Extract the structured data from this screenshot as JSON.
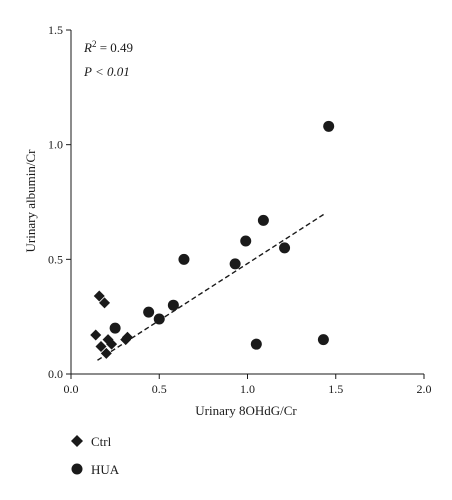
{
  "chart_data": {
    "type": "scatter",
    "xlabel": "Urinary 8OHdG/Cr",
    "ylabel": "Urinary albumin/Cr",
    "xlim": [
      0.0,
      2.0
    ],
    "ylim": [
      0.0,
      1.5
    ],
    "x_ticks": [
      "0.0",
      "0.5",
      "1.0",
      "1.5",
      "2.0"
    ],
    "y_ticks": [
      "0.0",
      "0.5",
      "1.0",
      "1.5"
    ],
    "annotation": {
      "r2_symbol": "R",
      "r2_power": "2",
      "r2_value": " = 0.49",
      "p_text": "P < 0.01"
    },
    "series": [
      {
        "name": "Ctrl",
        "marker": "diamond",
        "points": [
          {
            "x": 0.14,
            "y": 0.17
          },
          {
            "x": 0.16,
            "y": 0.34
          },
          {
            "x": 0.17,
            "y": 0.12
          },
          {
            "x": 0.19,
            "y": 0.31
          },
          {
            "x": 0.2,
            "y": 0.09
          },
          {
            "x": 0.21,
            "y": 0.15
          },
          {
            "x": 0.23,
            "y": 0.13
          },
          {
            "x": 0.31,
            "y": 0.15
          },
          {
            "x": 0.32,
            "y": 0.16
          }
        ]
      },
      {
        "name": "HUA",
        "marker": "circle",
        "points": [
          {
            "x": 0.25,
            "y": 0.2
          },
          {
            "x": 0.44,
            "y": 0.27
          },
          {
            "x": 0.5,
            "y": 0.24
          },
          {
            "x": 0.58,
            "y": 0.3
          },
          {
            "x": 0.64,
            "y": 0.5
          },
          {
            "x": 0.93,
            "y": 0.48
          },
          {
            "x": 0.99,
            "y": 0.58
          },
          {
            "x": 1.05,
            "y": 0.13
          },
          {
            "x": 1.09,
            "y": 0.67
          },
          {
            "x": 1.21,
            "y": 0.55
          },
          {
            "x": 1.43,
            "y": 0.15
          },
          {
            "x": 1.46,
            "y": 1.08
          }
        ]
      }
    ],
    "fit_line": {
      "x": [
        0.15,
        1.44
      ],
      "y": [
        0.06,
        0.7
      ],
      "style": "dashed"
    },
    "legend": {
      "placement": "bottom-left",
      "entries": [
        "Ctrl",
        "HUA"
      ]
    },
    "grid": false,
    "colors": {
      "ink": "#1a1a1a"
    }
  }
}
